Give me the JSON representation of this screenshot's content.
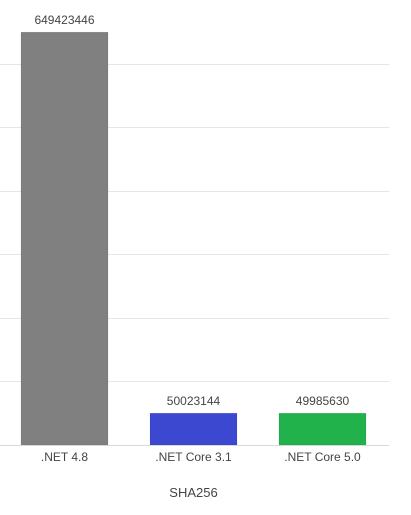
{
  "chart_data": {
    "type": "bar",
    "categories": [
      ".NET 4.8",
      ".NET Core 3.1",
      ".NET Core 5.0"
    ],
    "values": [
      649423446,
      50023144,
      49985630
    ],
    "value_labels": [
      "649423446",
      "50023144",
      "49985630"
    ],
    "colors": [
      "#808080",
      "#3c48d0",
      "#22b24c"
    ],
    "xlabel": "SHA256",
    "ylabel": "",
    "ylim": [
      0,
      700000000
    ],
    "grid": true,
    "legend": "none"
  }
}
